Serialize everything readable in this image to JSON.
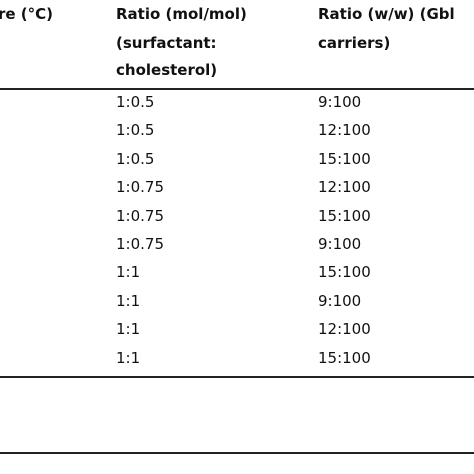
{
  "header": {
    "col1": "re (°C)",
    "col2": [
      "Ratio (mol/mol)",
      "(surfactant:",
      "cholesterol)"
    ],
    "col3": [
      "Ratio (w/w) (Gbl",
      "carriers)"
    ]
  },
  "table": {
    "rows": [
      [
        "1:0.5",
        "9:100"
      ],
      [
        "1:0.5",
        "12:100"
      ],
      [
        "1:0.5",
        "15:100"
      ],
      [
        "1:0.75",
        "12:100"
      ],
      [
        "1:0.75",
        "15:100"
      ],
      [
        "1:0.75",
        "9:100"
      ],
      [
        "1:1",
        "15:100"
      ],
      [
        "1:1",
        "9:100"
      ],
      [
        "1:1",
        "12:100"
      ],
      [
        "1:1",
        "15:100"
      ]
    ]
  }
}
